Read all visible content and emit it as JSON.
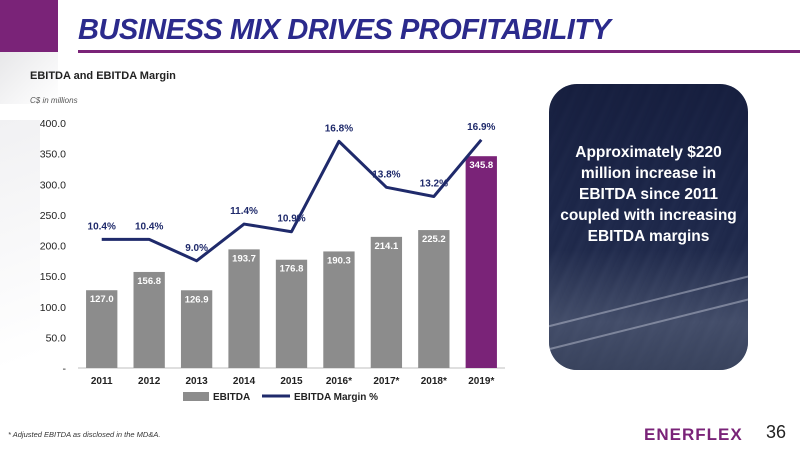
{
  "slide": {
    "title": "BUSINESS MIX DRIVES PROFITABILITY",
    "footnote": "* Adjusted EBITDA as disclosed in the MD&A.",
    "logo": "ENERFLEX",
    "page_number": "36",
    "callout": "Approximately $220 million increase in EBITDA since 2011 coupled with increasing EBITDA margins"
  },
  "chart_data": {
    "type": "bar",
    "title": "EBITDA and EBITDA Margin",
    "unit_label": "C$ in millions",
    "categories": [
      "2011",
      "2012",
      "2013",
      "2014",
      "2015",
      "2016*",
      "2017*",
      "2018*",
      "2019*"
    ],
    "ylim": [
      0,
      400
    ],
    "y_ticks": [
      0,
      50,
      100,
      150,
      200,
      250,
      300,
      350,
      400
    ],
    "y_tick_labels": [
      "-",
      "50.0",
      "100.0",
      "150.0",
      "200.0",
      "250.0",
      "300.0",
      "350.0",
      "400.0"
    ],
    "grid": false,
    "legend_position": "bottom",
    "series": [
      {
        "name": "EBITDA",
        "kind": "bar",
        "values": [
          127.0,
          156.8,
          126.9,
          193.7,
          176.8,
          190.3,
          214.1,
          225.2,
          345.8
        ],
        "labels": [
          "127.0",
          "156.8",
          "126.9",
          "193.7",
          "176.8",
          "190.3",
          "214.1",
          "225.2",
          "345.8"
        ],
        "color": "#8c8c8c",
        "highlight_color": "#7a2378",
        "highlight_index": 8
      },
      {
        "name": "EBITDA Margin %",
        "kind": "line",
        "values": [
          10.4,
          10.4,
          9.0,
          11.4,
          10.9,
          16.8,
          13.8,
          13.2,
          16.9
        ],
        "labels": [
          "10.4%",
          "10.4%",
          "9.0%",
          "11.4%",
          "10.9%",
          "16.8%",
          "13.8%",
          "13.2%",
          "16.9%"
        ],
        "color": "#1f2a6b"
      }
    ]
  }
}
